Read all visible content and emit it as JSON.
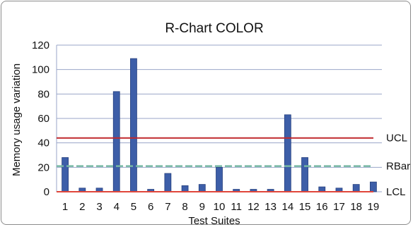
{
  "chart_data": {
    "type": "bar",
    "title": "R-Chart COLOR",
    "xlabel": "Test Suites",
    "ylabel": "Memory usage variation",
    "categories": [
      "1",
      "2",
      "3",
      "4",
      "5",
      "6",
      "7",
      "8",
      "9",
      "10",
      "11",
      "12",
      "13",
      "14",
      "15",
      "16",
      "17",
      "18",
      "19"
    ],
    "series": [
      {
        "values": [
          28,
          3,
          3,
          82,
          109,
          2,
          15,
          5,
          6,
          20,
          2,
          2,
          2,
          63,
          28,
          4,
          3,
          6,
          8
        ]
      }
    ],
    "ylim": [
      0,
      120
    ],
    "yticks": [
      0,
      20,
      40,
      60,
      80,
      100,
      120
    ],
    "grid": true,
    "reference_lines": [
      {
        "label": "UCL",
        "value": 44,
        "color": "#c0282d",
        "style": "solid"
      },
      {
        "label": "RBar",
        "value": 21,
        "color": "#77b8a4",
        "style": "dashed"
      },
      {
        "label": "LCL",
        "value": 0,
        "color": "#e0463a",
        "style": "solid"
      }
    ],
    "colors": {
      "bar": "#3d5ea8",
      "bar_edge": "#26407e",
      "grid": "#9aa6c8"
    }
  }
}
